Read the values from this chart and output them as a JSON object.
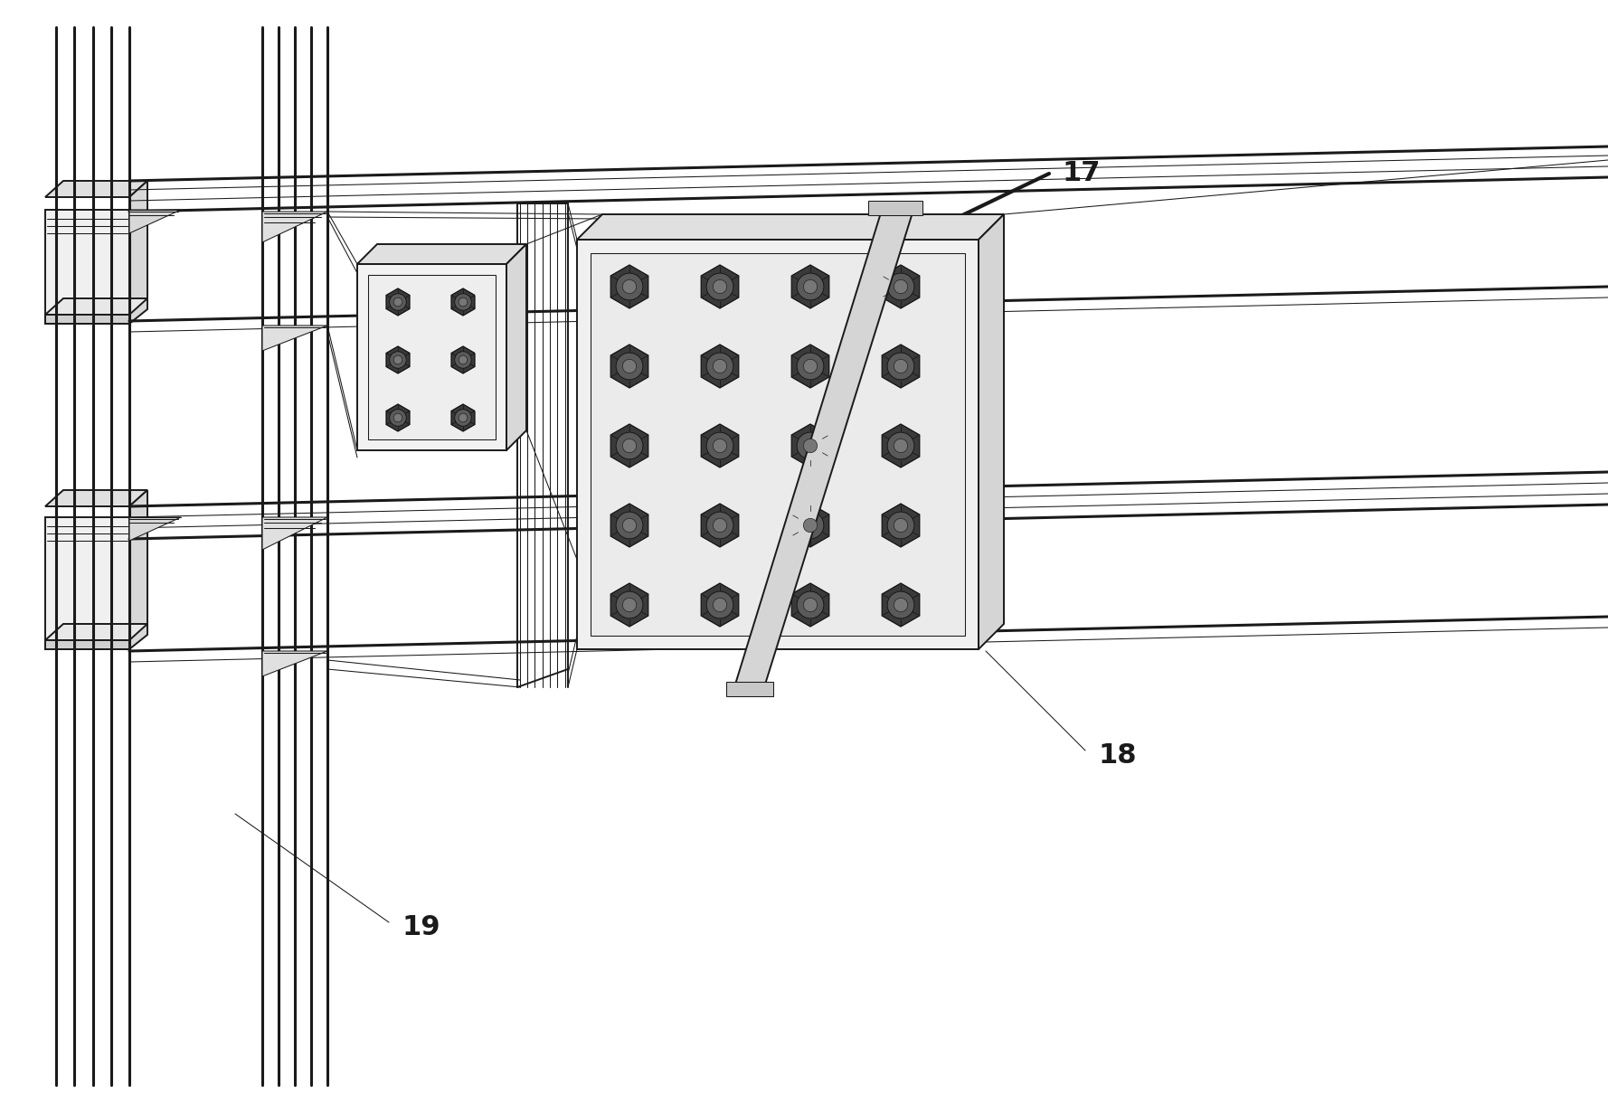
{
  "background_color": "#ffffff",
  "line_color": "#1a1a1a",
  "lw_thick": 2.2,
  "lw_med": 1.4,
  "lw_thin": 0.75,
  "label_17": "17",
  "label_18": "18",
  "label_19": "19",
  "label_fontsize": 22,
  "label_fontweight": "bold",
  "figw": 17.78,
  "figh": 12.32,
  "dpi": 100
}
